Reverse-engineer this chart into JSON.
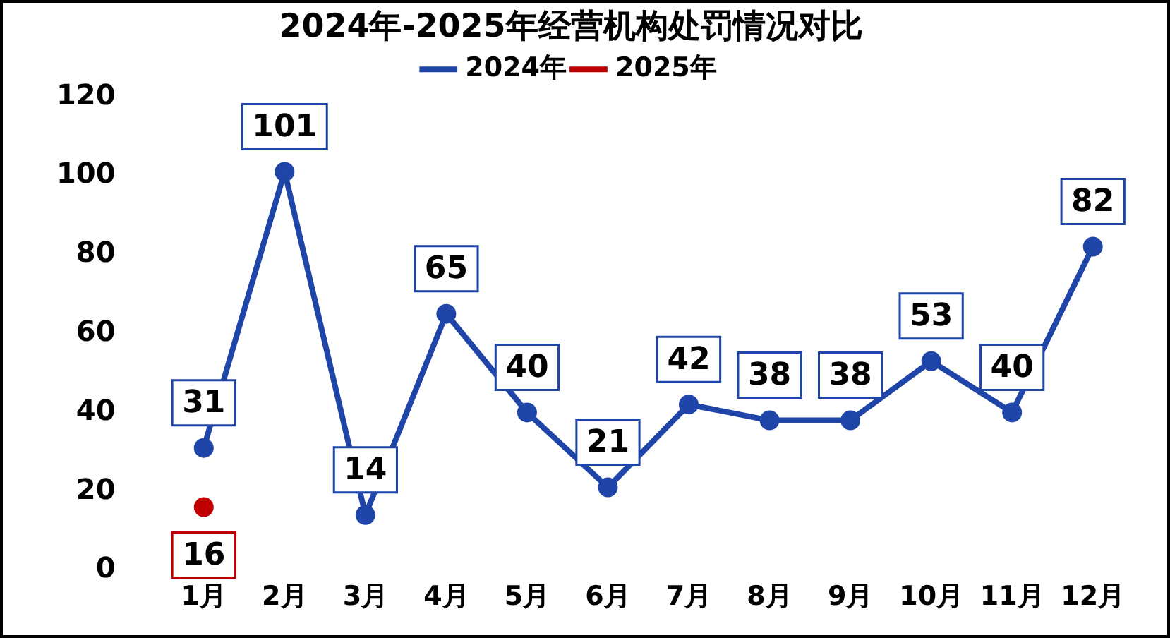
{
  "chart_data": {
    "type": "line",
    "title": "2024年-2025年经营机构处罚情况对比",
    "categories": [
      "1月",
      "2月",
      "3月",
      "4月",
      "5月",
      "6月",
      "7月",
      "8月",
      "9月",
      "10月",
      "11月",
      "12月"
    ],
    "series": [
      {
        "name": "2024年",
        "color": "#1f45a8",
        "values": [
          31,
          101,
          14,
          65,
          40,
          21,
          42,
          38,
          38,
          53,
          40,
          82
        ]
      },
      {
        "name": "2025年",
        "color": "#c00000",
        "values": [
          16,
          null,
          null,
          null,
          null,
          null,
          null,
          null,
          null,
          null,
          null,
          null
        ]
      }
    ],
    "ylim": [
      0,
      120
    ],
    "yticks": [
      0,
      20,
      40,
      60,
      80,
      100,
      120
    ],
    "grid": false,
    "legend": "top",
    "marker": "circle",
    "line_style": "solid",
    "data_labels": true
  }
}
